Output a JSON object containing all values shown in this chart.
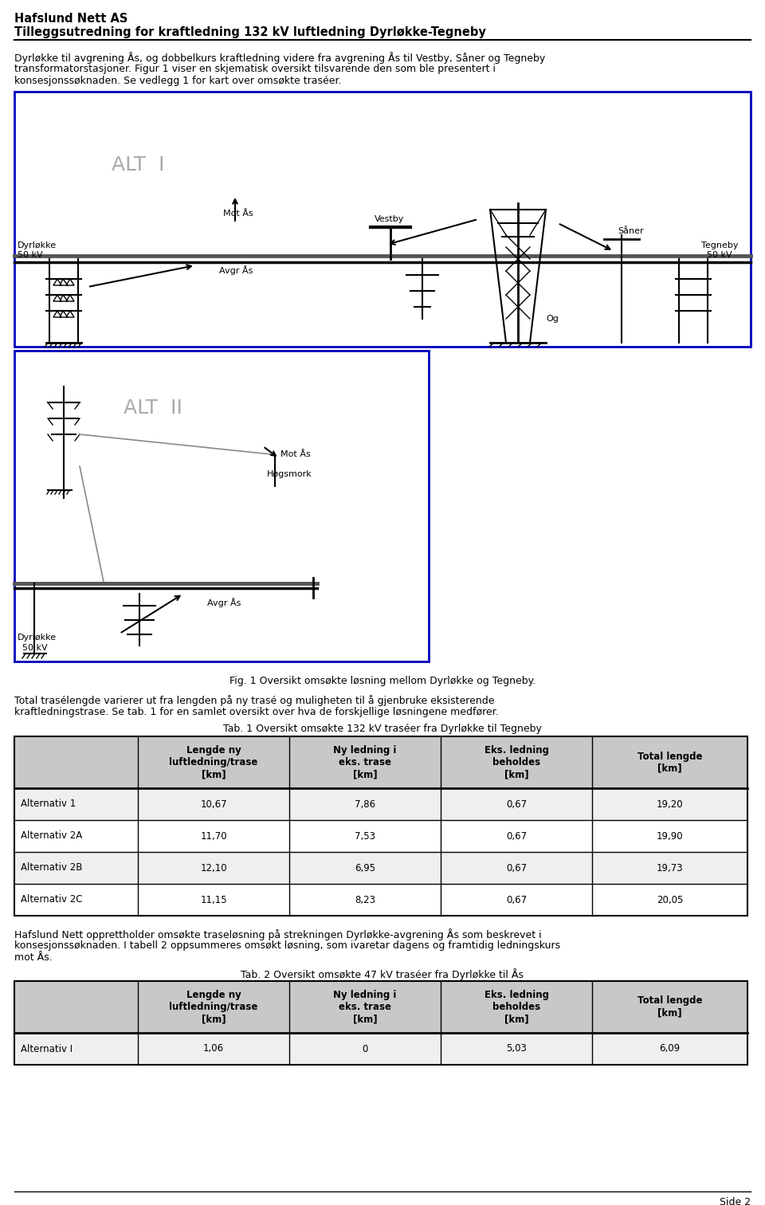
{
  "header_line1": "Hafslund Nett AS",
  "header_line2": "Tilleggsutredning for kraftledning 132 kV luftledning Dyrløkke-Tegneby",
  "intro_text_lines": [
    "Dyrløkke til avgrening Ås, og dobbelkurs kraftledning videre fra avgrening Ås til Vestby, Såner og Tegneby",
    "transformatorstasjoner. Figur 1 viser en skjematisk oversikt tilsvarende den som ble presentert i",
    "konsesjonssøknaden. Se vedlegg 1 for kart over omsøkte traséer."
  ],
  "fig_caption": "Fig. 1 Oversikt omsøkte løsning mellom Dyrløkke og Tegneby.",
  "para1_lines": [
    "Total trasélengde varierer ut fra lengden på ny trasé og muligheten til å gjenbruke eksisterende",
    "kraftledningstrase. Se tab. 1 for en samlet oversikt over hva de forskjellige løsningene medfører."
  ],
  "tab1_title": "Tab. 1 Oversikt omsøkte 132 kV traséer fra Dyrløkke til Tegneby",
  "tab1_headers": [
    "",
    "Lengde ny\nluftledning/trase\n[km]",
    "Ny ledning i\neks. trase\n[km]",
    "Eks. ledning\nbeholdes\n[km]",
    "Total lengde\n[km]"
  ],
  "tab1_rows": [
    [
      "Alternativ 1",
      "10,67",
      "7,86",
      "0,67",
      "19,20"
    ],
    [
      "Alternativ 2A",
      "11,70",
      "7,53",
      "0,67",
      "19,90"
    ],
    [
      "Alternativ 2B",
      "12,10",
      "6,95",
      "0,67",
      "19,73"
    ],
    [
      "Alternativ 2C",
      "11,15",
      "8,23",
      "0,67",
      "20,05"
    ]
  ],
  "para2_lines": [
    "Hafslund Nett opprettholder omsøkte traseløsning på strekningen Dyrløkke-avgrening Ås som beskrevet i",
    "konsesjonssøknaden. I tabell 2 oppsummeres omsøkt løsning, som ivaretar dagens og framtidig ledningskurs",
    "mot Ås."
  ],
  "tab2_title": "Tab. 2 Oversikt omsøkte 47 kV traséer fra Dyrløkke til Ås",
  "tab2_headers": [
    "",
    "Lengde ny\nluftledning/trase\n[km]",
    "Ny ledning i\neks. trase\n[km]",
    "Eks. ledning\nbeholdes\n[km]",
    "Total lengde\n[km]"
  ],
  "tab2_rows": [
    [
      "Alternativ I",
      "1,06",
      "0",
      "5,03",
      "6,09"
    ]
  ],
  "page_label": "Side 2",
  "bg_color": "#ffffff",
  "diagram_border_color": "#0000bb",
  "table_header_bg": "#c8c8c8",
  "table_row_bg": "#efefef"
}
